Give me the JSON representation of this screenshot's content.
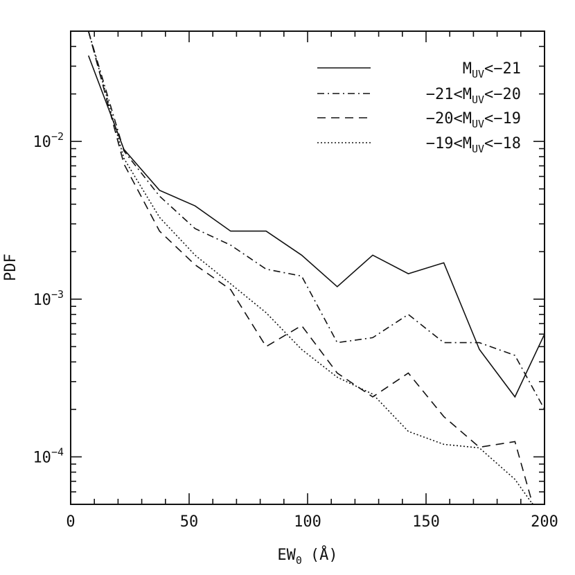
{
  "chart_data": {
    "type": "line",
    "title": "",
    "xlabel": "EW",
    "xlabel_sub": "0",
    "xlabel_unit": "(Å)",
    "ylabel": "PDF",
    "xlim": [
      0,
      200
    ],
    "ylim": [
      5e-05,
      0.05
    ],
    "yscale": "log",
    "grid": false,
    "legend_position": "top-right",
    "x_ticks": [
      0,
      50,
      100,
      150,
      200
    ],
    "x_tick_labels": [
      "0",
      "50",
      "100",
      "150",
      "200"
    ],
    "y_ticks": [
      0.01,
      0.001,
      0.0001
    ],
    "y_tick_labels": [
      {
        "base": "10",
        "exp": "−2"
      },
      {
        "base": "10",
        "exp": "−3"
      },
      {
        "base": "10",
        "exp": "−4"
      }
    ],
    "series": [
      {
        "name": "M_UV<−21",
        "legend": {
          "pre": "",
          "sub": "UV",
          "post": "<−21",
          "main": "M"
        },
        "dash": "solid",
        "x": [
          7.5,
          22.5,
          37.5,
          52.5,
          67.5,
          82.5,
          97.5,
          112.5,
          127.5,
          142.5,
          157.5,
          172.5,
          187.5,
          200
        ],
        "y": [
          0.035,
          0.0089,
          0.0049,
          0.0039,
          0.0027,
          0.0027,
          0.0019,
          0.0012,
          0.0019,
          0.00145,
          0.0017,
          0.00048,
          0.00024,
          0.0006
        ]
      },
      {
        "name": "−21<M_UV<−20",
        "legend": {
          "pre": "−21<",
          "main": "M",
          "sub": "UV",
          "post": "<−20"
        },
        "dash": "dashdot",
        "x": [
          7.5,
          22.5,
          37.5,
          52.5,
          67.5,
          82.5,
          97.5,
          112.5,
          127.5,
          142.5,
          157.5,
          172.5,
          187.5,
          200
        ],
        "y": [
          0.05,
          0.0087,
          0.0045,
          0.0028,
          0.0022,
          0.00155,
          0.0014,
          0.00053,
          0.00057,
          0.0008,
          0.00053,
          0.00053,
          0.00044,
          0.0002
        ]
      },
      {
        "name": "−20<M_UV<−19",
        "legend": {
          "pre": "−20<",
          "main": "M",
          "sub": "UV",
          "post": "<−19"
        },
        "dash": "dashed",
        "x": [
          7.5,
          22.5,
          37.5,
          52.5,
          67.5,
          82.5,
          97.5,
          112.5,
          127.5,
          142.5,
          157.5,
          172.5,
          187.5,
          195
        ],
        "y": [
          0.05,
          0.0072,
          0.0027,
          0.00165,
          0.00115,
          0.0005,
          0.00068,
          0.00034,
          0.00024,
          0.00034,
          0.00018,
          0.000115,
          0.000125,
          5e-05
        ]
      },
      {
        "name": "−19<M_UV<−18",
        "legend": {
          "pre": "−19<",
          "main": "M",
          "sub": "UV",
          "post": "<−18"
        },
        "dash": "dotted",
        "x": [
          7.5,
          22.5,
          37.5,
          52.5,
          67.5,
          82.5,
          97.5,
          112.5,
          127.5,
          142.5,
          157.5,
          172.5,
          187.5,
          195
        ],
        "y": [
          0.05,
          0.0078,
          0.0033,
          0.0019,
          0.00125,
          0.00082,
          0.00048,
          0.00032,
          0.00025,
          0.000145,
          0.00012,
          0.000114,
          7.2e-05,
          5e-05
        ]
      }
    ]
  }
}
